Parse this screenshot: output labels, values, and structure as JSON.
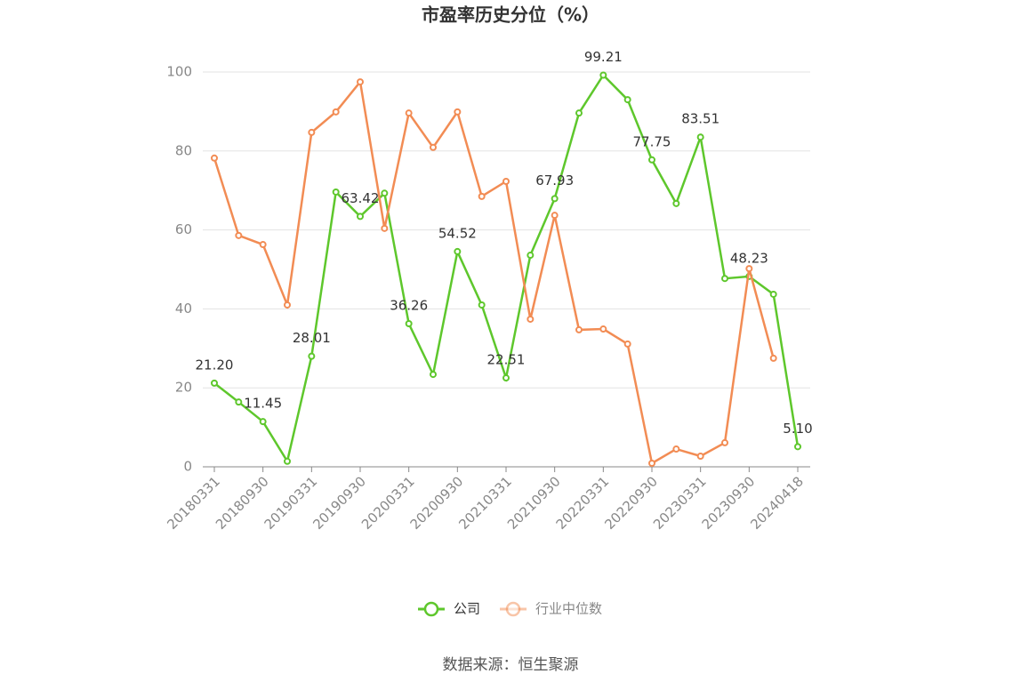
{
  "chart_data": {
    "type": "line",
    "title": "市盈率历史分位（%）",
    "categories": [
      "20180331",
      null,
      "20180930",
      null,
      "20190331",
      null,
      "20190930",
      null,
      "20200331",
      null,
      "20200930",
      null,
      "20210331",
      null,
      "20210930",
      null,
      "20220331",
      null,
      "20220930",
      null,
      "20230331",
      null,
      "20230930",
      null,
      "20240418"
    ],
    "series": [
      {
        "name": "公司",
        "color": "#5ec72c",
        "values": [
          21.2,
          16.4,
          11.45,
          1.4,
          28.01,
          69.6,
          63.42,
          69.3,
          36.26,
          23.4,
          54.52,
          41.0,
          22.51,
          53.6,
          67.93,
          89.6,
          99.21,
          93.0,
          77.75,
          66.7,
          83.51,
          47.7,
          48.23,
          43.7,
          5.1
        ],
        "value_labels": [
          "21.20",
          null,
          "11.45",
          null,
          "28.01",
          null,
          "63.42",
          null,
          "36.26",
          null,
          "54.52",
          null,
          "22.51",
          null,
          "67.93",
          null,
          "99.21",
          null,
          "77.75",
          null,
          "83.51",
          null,
          "48.23",
          null,
          "5.10"
        ]
      },
      {
        "name": "行业中位数",
        "color": "#f28c54",
        "values": [
          78.2,
          58.6,
          56.3,
          41.0,
          84.7,
          89.9,
          97.5,
          60.4,
          89.6,
          80.9,
          89.9,
          68.5,
          72.3,
          37.4,
          63.7,
          34.7,
          34.9,
          31.1,
          0.9,
          4.5,
          2.7,
          6.1,
          50.2,
          27.5,
          null
        ]
      }
    ],
    "ylim": [
      0,
      100
    ],
    "yticks": [
      0,
      20,
      40,
      60,
      80,
      100
    ],
    "grid": true
  },
  "source": "数据来源：恒生聚源"
}
